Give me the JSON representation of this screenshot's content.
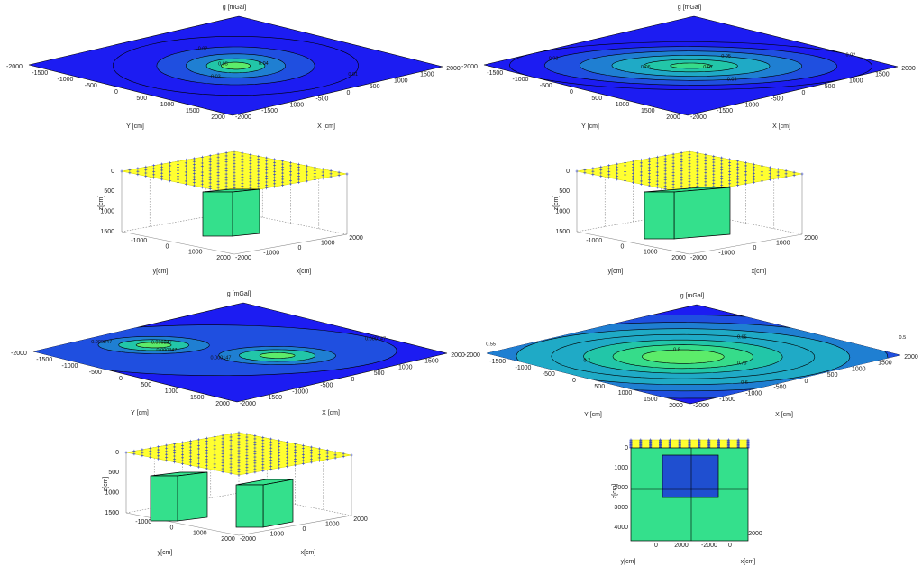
{
  "panels": [
    {
      "kind": "contour",
      "z_label": "g [mGal]",
      "y_label": "Y [cm]",
      "x_label": "X [cm]",
      "y_ticks": [
        -2000,
        -1500,
        -1000,
        -500,
        0,
        500,
        1000,
        1500,
        2000
      ],
      "x_ticks": [
        -2000,
        -1500,
        -1000,
        -500,
        0,
        500,
        1000,
        1500,
        2000
      ],
      "contour_labels": [
        "0.01",
        "0.02",
        "0.03",
        "0.04",
        "0.05"
      ]
    },
    {
      "kind": "contour",
      "z_label": "g [mGal]",
      "y_label": "Y [cm]",
      "x_label": "X [cm]",
      "y_ticks": [
        -2000,
        -1500,
        -1000,
        -500,
        0,
        500,
        1000,
        1500,
        2000
      ],
      "x_ticks": [
        -2000,
        -1500,
        -1000,
        -500,
        0,
        500,
        1000,
        1500,
        2000
      ],
      "contour_labels": [
        "0.02",
        "0.03",
        "0.04",
        "0.05",
        "0.06",
        "0.07"
      ]
    },
    {
      "kind": "box",
      "z_label": "z[cm]",
      "y_label": "y[cm]",
      "x_label": "x[cm]",
      "z_ticks": [
        0,
        500,
        1000,
        1500
      ],
      "y_ticks": [
        -1000,
        0,
        1000,
        2000
      ],
      "x_ticks": [
        -2000,
        -1000,
        0,
        1000,
        2000
      ]
    },
    {
      "kind": "box",
      "z_label": "z[cm]",
      "y_label": "y[cm]",
      "x_label": "x[cm]",
      "z_ticks": [
        0,
        500,
        1000,
        1500
      ],
      "y_ticks": [
        -1000,
        0,
        1000,
        2000
      ],
      "x_ticks": [
        -2000,
        -1000,
        0,
        1000,
        2000
      ]
    },
    {
      "kind": "contour",
      "z_label": "g [mGal]",
      "y_label": "Y [cm]",
      "x_label": "X [cm]",
      "y_ticks": [
        -2000,
        -1500,
        -1000,
        -500,
        0,
        500,
        1000,
        1500,
        2000
      ],
      "x_ticks": [
        -2000,
        -1500,
        -1000,
        -500,
        0,
        500,
        1000,
        1500,
        2000
      ],
      "contour_labels": [
        "0.000147",
        "0.000247",
        "0.000347",
        "0.000247",
        "0.000147"
      ]
    },
    {
      "kind": "contour",
      "z_label": "g [mGal]",
      "y_label": "Y [cm]",
      "x_label": "X [cm]",
      "y_ticks": [
        -2000,
        -1500,
        -1000,
        -500,
        0,
        500,
        1000,
        1500,
        2000
      ],
      "x_ticks": [
        -2000,
        -1500,
        -1000,
        -500,
        0,
        500,
        1000,
        1500,
        2000
      ],
      "contour_labels": [
        "0.5",
        "0.55",
        "0.6",
        "0.65",
        "0.7",
        "0.75",
        "0.8"
      ]
    },
    {
      "kind": "box",
      "z_label": "z[cm]",
      "y_label": "y[cm]",
      "x_label": "x[cm]",
      "z_ticks": [
        0,
        500,
        1000,
        1500
      ],
      "y_ticks": [
        -1000,
        0,
        1000,
        2000
      ],
      "x_ticks": [
        -2000,
        -1000,
        0,
        1000,
        2000
      ]
    },
    {
      "kind": "front",
      "z_label": "z[cm]",
      "y_label": "y[cm]",
      "x_label": "x[cm]",
      "z_ticks": [
        0,
        1000,
        2000,
        3000,
        4000
      ],
      "y_ticks": [
        0,
        2000
      ],
      "x_ticks": [
        -2000,
        0,
        2000
      ]
    }
  ]
}
